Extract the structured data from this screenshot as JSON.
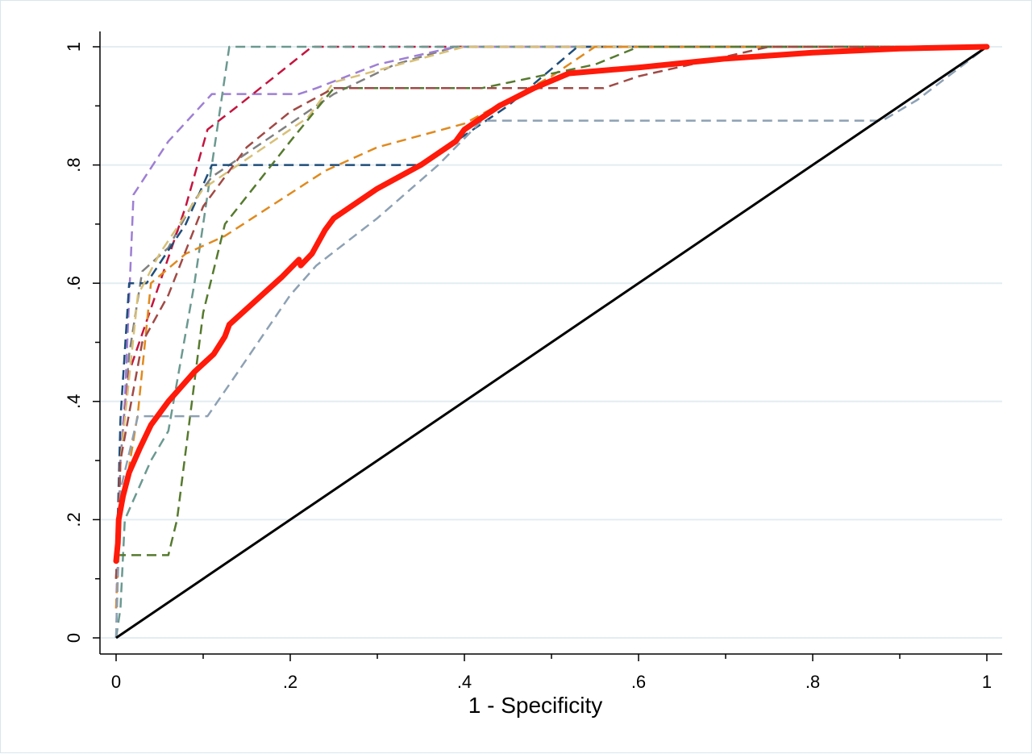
{
  "chart_data": {
    "type": "line",
    "title": "",
    "xlabel": "1 - Specificity",
    "ylabel": "",
    "xlim": [
      0,
      1
    ],
    "ylim": [
      0,
      1
    ],
    "x_ticks": [
      {
        "value": 0,
        "label": "0"
      },
      {
        "value": 0.2,
        "label": ".2"
      },
      {
        "value": 0.4,
        "label": ".4"
      },
      {
        "value": 0.6,
        "label": ".6"
      },
      {
        "value": 0.8,
        "label": ".8"
      },
      {
        "value": 1,
        "label": "1"
      }
    ],
    "x_minor_ticks": [
      0.1,
      0.3,
      0.5,
      0.7,
      0.9
    ],
    "y_ticks": [
      {
        "value": 0,
        "label": "0"
      },
      {
        "value": 0.2,
        "label": ".2"
      },
      {
        "value": 0.4,
        "label": ".4"
      },
      {
        "value": 0.6,
        "label": ".6"
      },
      {
        "value": 0.8,
        "label": ".8"
      },
      {
        "value": 1,
        "label": "1"
      }
    ],
    "y_minor_ticks": [
      0.1,
      0.3,
      0.5,
      0.7,
      0.9
    ],
    "grid": "horizontal",
    "legend": "none",
    "reference_line": {
      "color": "#000000",
      "points": [
        [
          0,
          0
        ],
        [
          1,
          1
        ]
      ]
    },
    "summary_curve": {
      "color": "#ff1a0a",
      "points": [
        [
          0,
          0.13
        ],
        [
          0.002,
          0.16
        ],
        [
          0.003,
          0.2
        ],
        [
          0.008,
          0.24
        ],
        [
          0.015,
          0.28
        ],
        [
          0.027,
          0.32
        ],
        [
          0.04,
          0.36
        ],
        [
          0.06,
          0.4
        ],
        [
          0.09,
          0.45
        ],
        [
          0.112,
          0.48
        ],
        [
          0.125,
          0.51
        ],
        [
          0.13,
          0.53
        ],
        [
          0.16,
          0.57
        ],
        [
          0.19,
          0.61
        ],
        [
          0.21,
          0.64
        ],
        [
          0.212,
          0.63
        ],
        [
          0.225,
          0.65
        ],
        [
          0.24,
          0.69
        ],
        [
          0.25,
          0.71
        ],
        [
          0.3,
          0.76
        ],
        [
          0.35,
          0.8
        ],
        [
          0.39,
          0.84
        ],
        [
          0.4,
          0.86
        ],
        [
          0.44,
          0.9
        ],
        [
          0.48,
          0.93
        ],
        [
          0.52,
          0.955
        ],
        [
          0.6,
          0.965
        ],
        [
          0.7,
          0.98
        ],
        [
          0.8,
          0.99
        ],
        [
          0.9,
          0.997
        ],
        [
          1,
          1
        ]
      ]
    },
    "study_curves": [
      {
        "color": "#808080",
        "points": [
          [
            0,
            0
          ],
          [
            0.005,
            0.3
          ],
          [
            0.015,
            0.48
          ],
          [
            0.03,
            0.62
          ],
          [
            0.06,
            0.66
          ],
          [
            0.09,
            0.74
          ],
          [
            0.11,
            0.78
          ],
          [
            0.2,
            0.87
          ],
          [
            0.25,
            0.92
          ],
          [
            0.32,
            0.97
          ],
          [
            0.39,
            1
          ],
          [
            0.6,
            1
          ],
          [
            1,
            1
          ]
        ]
      },
      {
        "color": "#9e7fd4",
        "points": [
          [
            0,
            0.05
          ],
          [
            0.005,
            0.3
          ],
          [
            0.01,
            0.4
          ],
          [
            0.02,
            0.75
          ],
          [
            0.06,
            0.84
          ],
          [
            0.11,
            0.92
          ],
          [
            0.21,
            0.92
          ],
          [
            0.23,
            0.93
          ],
          [
            0.3,
            0.97
          ],
          [
            0.39,
            1
          ],
          [
            1,
            1
          ]
        ]
      },
      {
        "color": "#c4153f",
        "points": [
          [
            0,
            0.1
          ],
          [
            0.005,
            0.3
          ],
          [
            0.015,
            0.45
          ],
          [
            0.05,
            0.6
          ],
          [
            0.08,
            0.73
          ],
          [
            0.105,
            0.86
          ],
          [
            0.14,
            0.9
          ],
          [
            0.225,
            1
          ],
          [
            1,
            1
          ]
        ]
      },
      {
        "color": "#6b9990",
        "points": [
          [
            0,
            0
          ],
          [
            0.005,
            0.05
          ],
          [
            0.01,
            0.2
          ],
          [
            0.04,
            0.3
          ],
          [
            0.06,
            0.35
          ],
          [
            0.09,
            0.6
          ],
          [
            0.12,
            0.9
          ],
          [
            0.13,
            1
          ],
          [
            1,
            1
          ]
        ]
      },
      {
        "color": "#1f4e7a",
        "points": [
          [
            0,
            0.1
          ],
          [
            0.005,
            0.37
          ],
          [
            0.015,
            0.6
          ],
          [
            0.035,
            0.6
          ],
          [
            0.08,
            0.7
          ],
          [
            0.11,
            0.8
          ],
          [
            0.33,
            0.8
          ],
          [
            0.35,
            0.8
          ],
          [
            0.45,
            0.9
          ],
          [
            0.53,
            1
          ],
          [
            1,
            1
          ]
        ]
      },
      {
        "color": "#d8c078",
        "points": [
          [
            0,
            0.1
          ],
          [
            0.005,
            0.3
          ],
          [
            0.025,
            0.58
          ],
          [
            0.05,
            0.65
          ],
          [
            0.1,
            0.76
          ],
          [
            0.15,
            0.81
          ],
          [
            0.22,
            0.88
          ],
          [
            0.25,
            0.94
          ],
          [
            0.3,
            0.96
          ],
          [
            0.4,
            1
          ],
          [
            1,
            1
          ]
        ]
      },
      {
        "color": "#e08a1e",
        "points": [
          [
            0,
            0.05
          ],
          [
            0.005,
            0.2
          ],
          [
            0.025,
            0.38
          ],
          [
            0.04,
            0.6
          ],
          [
            0.08,
            0.65
          ],
          [
            0.125,
            0.68
          ],
          [
            0.24,
            0.79
          ],
          [
            0.3,
            0.83
          ],
          [
            0.4,
            0.87
          ],
          [
            0.5,
            0.95
          ],
          [
            0.55,
            1
          ],
          [
            1,
            1
          ]
        ]
      },
      {
        "color": "#567a2e",
        "points": [
          [
            0,
            0.14
          ],
          [
            0.005,
            0.14
          ],
          [
            0.06,
            0.14
          ],
          [
            0.07,
            0.2
          ],
          [
            0.1,
            0.55
          ],
          [
            0.125,
            0.7
          ],
          [
            0.2,
            0.84
          ],
          [
            0.25,
            0.93
          ],
          [
            0.42,
            0.93
          ],
          [
            0.55,
            0.97
          ],
          [
            0.6,
            1
          ],
          [
            1,
            1
          ]
        ]
      },
      {
        "color": "#a04a45",
        "points": [
          [
            0,
            0.1
          ],
          [
            0.005,
            0.3
          ],
          [
            0.03,
            0.5
          ],
          [
            0.06,
            0.58
          ],
          [
            0.1,
            0.73
          ],
          [
            0.15,
            0.83
          ],
          [
            0.2,
            0.89
          ],
          [
            0.25,
            0.93
          ],
          [
            0.42,
            0.93
          ],
          [
            0.56,
            0.93
          ],
          [
            0.6,
            0.95
          ],
          [
            0.75,
            1
          ],
          [
            1,
            1
          ]
        ]
      },
      {
        "color": "#8da1b4",
        "points": [
          [
            0,
            0
          ],
          [
            0.005,
            0.25
          ],
          [
            0.025,
            0.375
          ],
          [
            0.105,
            0.375
          ],
          [
            0.14,
            0.45
          ],
          [
            0.2,
            0.58
          ],
          [
            0.23,
            0.63
          ],
          [
            0.3,
            0.71
          ],
          [
            0.37,
            0.8
          ],
          [
            0.42,
            0.875
          ],
          [
            0.6,
            0.875
          ],
          [
            0.88,
            0.875
          ],
          [
            0.92,
            0.91
          ],
          [
            1,
            1
          ]
        ]
      }
    ]
  }
}
